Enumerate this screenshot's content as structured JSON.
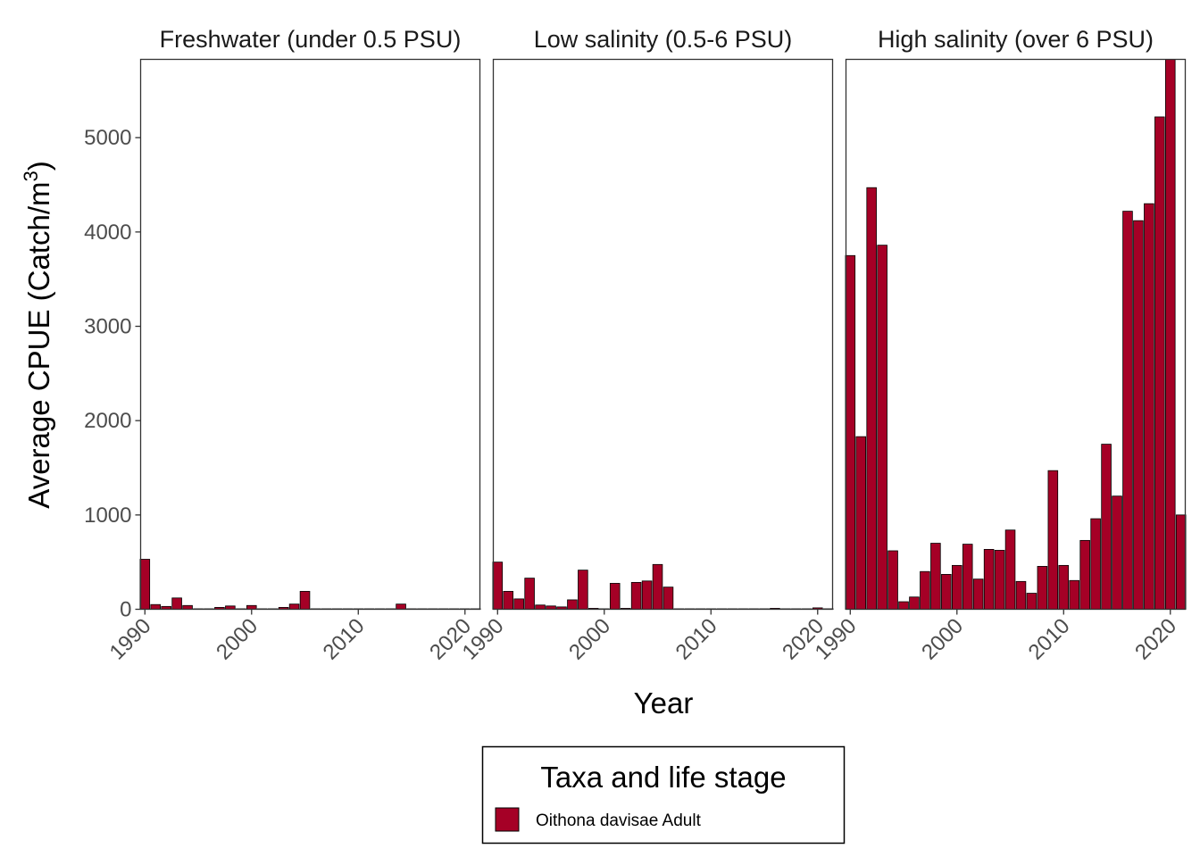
{
  "chart_data": {
    "type": "bar",
    "xlabel": "Year",
    "ylabel": "Average CPUE (Catch/m",
    "ylabel_superscript": "3",
    "ylabel_close": ")",
    "ylim": [
      0,
      5830
    ],
    "xlim": [
      1989.6,
      2021.4
    ],
    "xticks": [
      1990,
      2000,
      2010,
      2020
    ],
    "yticks": [
      0,
      1000,
      2000,
      3000,
      4000,
      5000
    ],
    "fill_color": "#A50026",
    "legend": {
      "title": "Taxa and life stage",
      "placement": "bottom",
      "entries": [
        "Oithona davisae Adult"
      ]
    },
    "panels": [
      {
        "title": "Freshwater (under 0.5 PSU)",
        "x": [
          1990,
          1991,
          1992,
          1993,
          1994,
          1995,
          1996,
          1997,
          1998,
          1999,
          2000,
          2001,
          2002,
          2003,
          2004,
          2005,
          2006,
          2007,
          2008,
          2009,
          2010,
          2011,
          2012,
          2013,
          2014,
          2015,
          2016,
          2017,
          2018,
          2019,
          2020,
          2021
        ],
        "values": [
          530,
          50,
          30,
          120,
          40,
          5,
          5,
          20,
          35,
          5,
          40,
          5,
          5,
          20,
          55,
          190,
          5,
          5,
          5,
          5,
          5,
          5,
          5,
          5,
          55,
          5,
          5,
          5,
          5,
          5,
          5,
          5
        ]
      },
      {
        "title": "Low salinity (0.5-6 PSU)",
        "x": [
          1990,
          1991,
          1992,
          1993,
          1994,
          1995,
          1996,
          1997,
          1998,
          1999,
          2000,
          2001,
          2002,
          2003,
          2004,
          2005,
          2006,
          2007,
          2008,
          2009,
          2010,
          2011,
          2012,
          2013,
          2014,
          2015,
          2016,
          2017,
          2018,
          2019,
          2020,
          2021
        ],
        "values": [
          500,
          190,
          110,
          330,
          45,
          35,
          25,
          100,
          415,
          10,
          5,
          275,
          10,
          285,
          300,
          475,
          235,
          5,
          5,
          5,
          5,
          5,
          5,
          5,
          5,
          5,
          10,
          5,
          5,
          5,
          15,
          5
        ]
      },
      {
        "title": "High salinity (over 6 PSU)",
        "x": [
          1990,
          1991,
          1992,
          1993,
          1994,
          1995,
          1996,
          1997,
          1998,
          1999,
          2000,
          2001,
          2002,
          2003,
          2004,
          2005,
          2006,
          2007,
          2008,
          2009,
          2010,
          2011,
          2012,
          2013,
          2014,
          2015,
          2016,
          2017,
          2018,
          2019,
          2020,
          2021
        ],
        "values": [
          3750,
          1830,
          4470,
          3860,
          620,
          80,
          130,
          400,
          700,
          370,
          465,
          690,
          320,
          635,
          625,
          840,
          295,
          170,
          455,
          1470,
          465,
          305,
          730,
          960,
          1750,
          1200,
          4220,
          4120,
          4300,
          5220,
          5830,
          1000
        ]
      }
    ]
  }
}
